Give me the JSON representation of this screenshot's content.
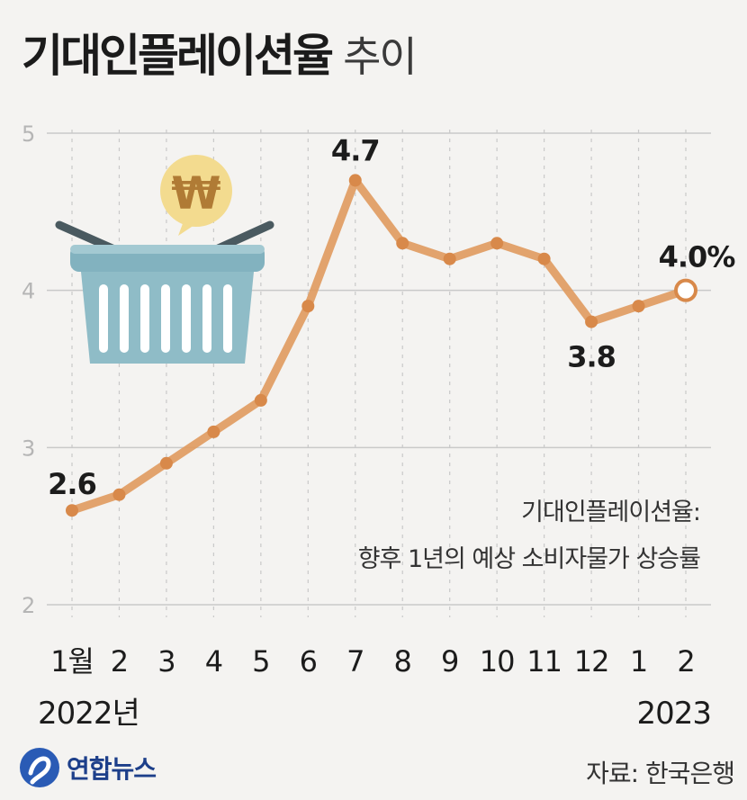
{
  "title": "기대인플레이션율",
  "title_sub": "추이",
  "chart_data": {
    "type": "line",
    "title": "기대인플레이션율 추이",
    "categories": [
      "1월",
      "2",
      "3",
      "4",
      "5",
      "6",
      "7",
      "8",
      "9",
      "10",
      "11",
      "12",
      "1",
      "2"
    ],
    "series": [
      {
        "name": "기대인플레이션율",
        "values": [
          2.6,
          2.7,
          2.9,
          3.1,
          3.3,
          3.9,
          4.7,
          4.3,
          4.2,
          4.3,
          4.2,
          3.8,
          3.9,
          4.0
        ]
      }
    ],
    "yticks": [
      "2",
      "3",
      "4",
      "5"
    ],
    "ylim": [
      2,
      5
    ],
    "year_labels": {
      "start": "2022년",
      "end": "2023"
    },
    "data_labels": [
      {
        "index": 0,
        "text": "2.6"
      },
      {
        "index": 6,
        "text": "4.7"
      },
      {
        "index": 11,
        "text": "3.8"
      },
      {
        "index": 13,
        "text": "4.0%"
      }
    ],
    "note_line1": "기대인플레이션율:",
    "note_line2": "향후 1년의 예상 소비자물가 상승률",
    "grid": true,
    "colors": {
      "line": "#e09a5e",
      "marker": "#d8894a",
      "grid": "#c9c9c9",
      "last_marker_fill": "#ffffff"
    }
  },
  "illustration": {
    "coin_symbol": "₩",
    "icon": "shopping-basket-icon"
  },
  "footer": {
    "logo_text": "연합뉴스",
    "source": "자료: 한국은행"
  }
}
